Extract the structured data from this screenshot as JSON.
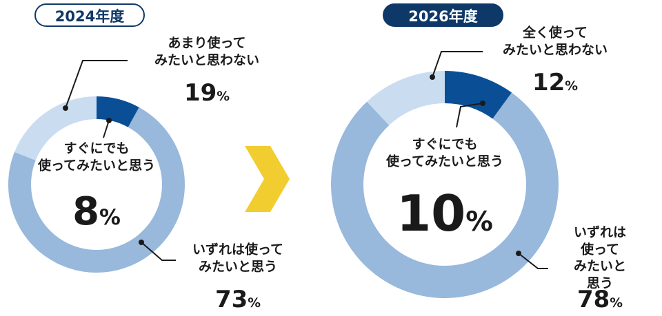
{
  "chart_data": [
    {
      "type": "pie",
      "title": "2024年度",
      "categories": [
        "すぐにでも\n使ってみたいと思う",
        "いずれは使って\nみたいと思う",
        "あまり使って\nみたいと思わない"
      ],
      "values": [
        8,
        73,
        19
      ],
      "value_labels": [
        "8%",
        "73%",
        "19%"
      ],
      "colors": [
        "#0a4f96",
        "#98b8dc",
        "#c9dcf0"
      ]
    },
    {
      "type": "pie",
      "title": "2026年度",
      "categories": [
        "すぐにでも\n使ってみたいと思う",
        "いずれは使って\nみたいと思う",
        "全く使って\nみたいと思わない"
      ],
      "values": [
        10,
        78,
        12
      ],
      "value_labels": [
        "10%",
        "78%",
        "12%"
      ],
      "colors": [
        "#0a4f96",
        "#98b8dc",
        "#c9dcf0"
      ]
    }
  ]
}
